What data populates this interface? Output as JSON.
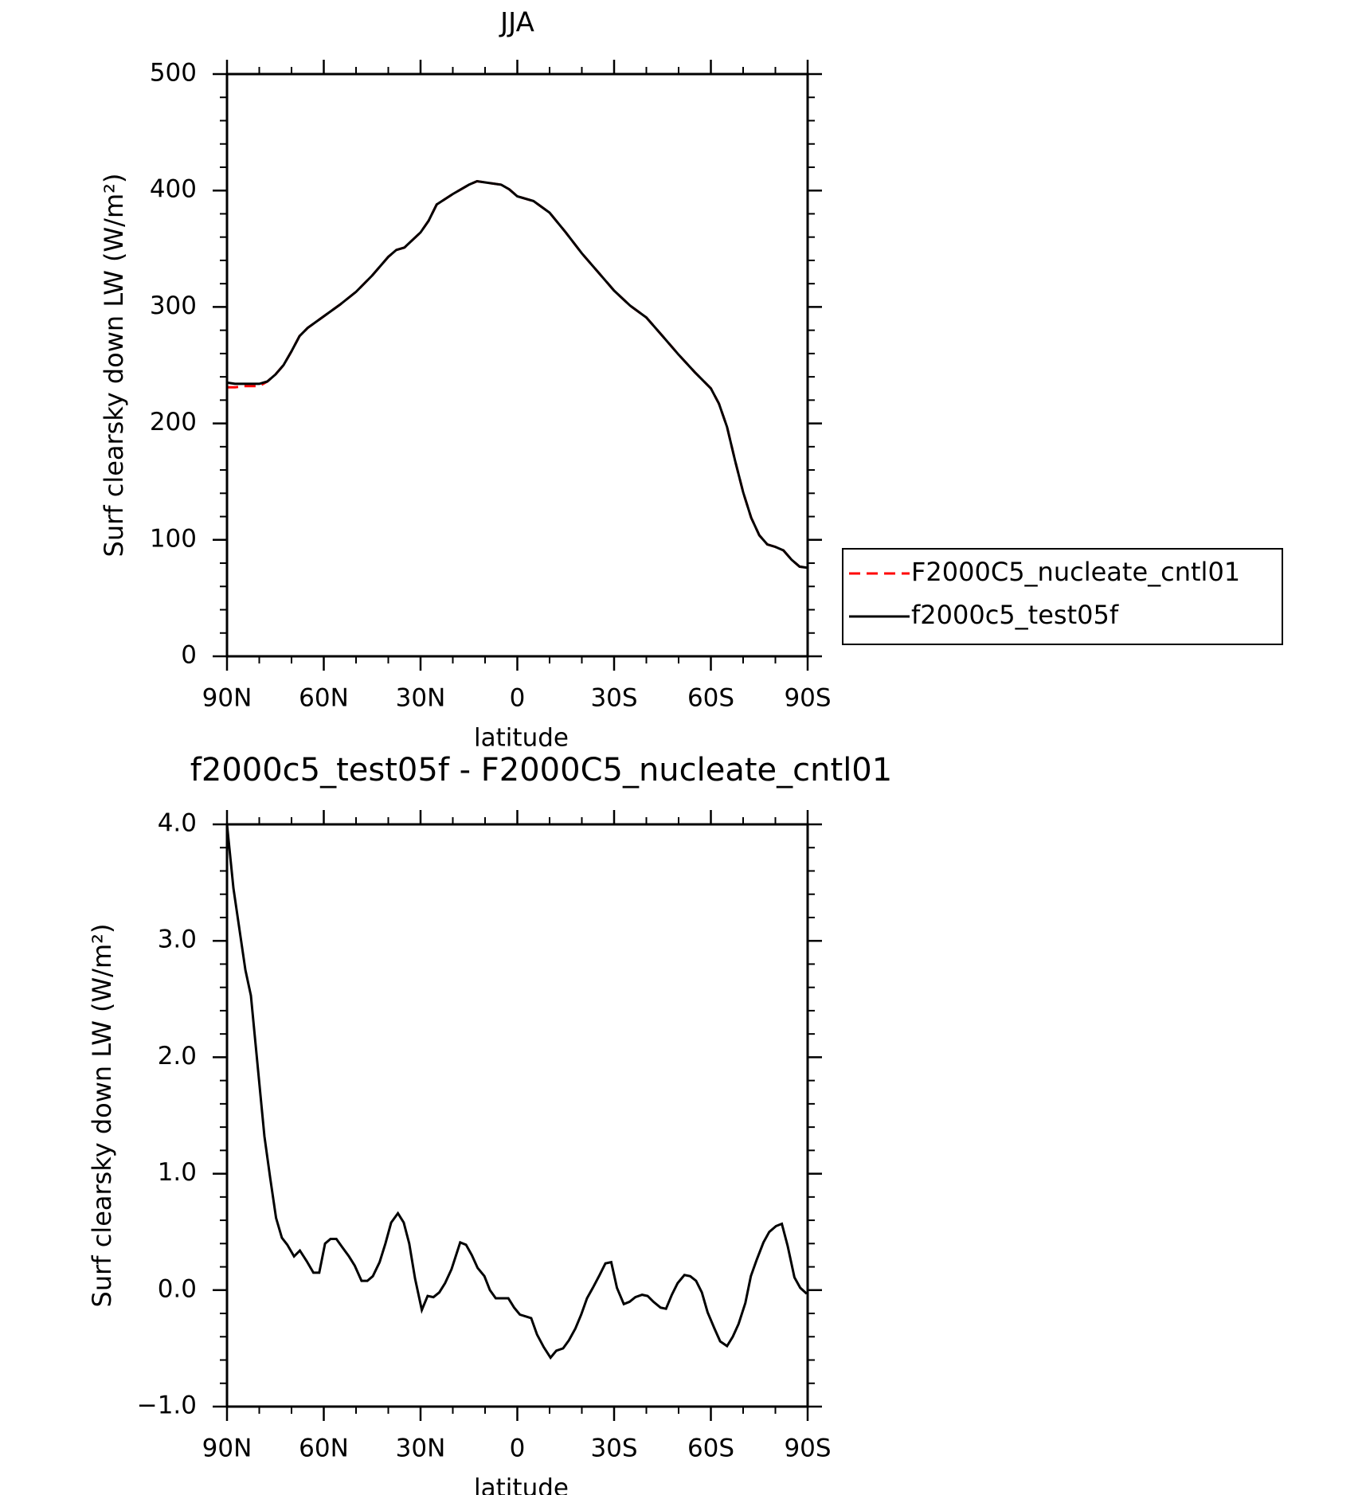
{
  "chart_data": [
    {
      "type": "line",
      "title": "JJA",
      "ylabel": "Surf clearsky down LW (W/m²)",
      "xlabel": "latitude",
      "x": [
        90,
        87.5,
        85,
        80,
        77.5,
        75,
        72.5,
        70,
        67.5,
        65,
        60,
        55,
        50,
        45,
        40,
        37.5,
        35,
        30,
        27.5,
        25,
        20,
        15,
        12.5,
        10,
        5,
        2.5,
        0,
        -5,
        -10,
        -15,
        -20,
        -25,
        -30,
        -35,
        -40,
        -45,
        -50,
        -55,
        -60,
        -62.5,
        -65,
        -67.5,
        -70,
        -72.5,
        -75,
        -77.5,
        -80,
        -82.5,
        -85,
        -87.5,
        -90
      ],
      "series": [
        {
          "name": "F2000C5_nucleate_cntl01",
          "color": "#ff0000",
          "dash": true,
          "values": [
            231,
            231,
            232,
            232,
            236,
            242,
            250,
            262,
            275,
            282,
            292,
            302,
            313,
            327,
            343,
            349,
            351,
            364,
            374,
            388,
            397,
            405,
            408,
            407,
            405,
            401,
            395,
            391,
            381,
            364,
            346,
            330,
            314,
            301,
            291,
            275,
            259,
            244,
            230,
            217,
            197,
            168,
            141,
            119,
            104,
            96,
            94,
            91,
            83,
            77,
            76
          ]
        },
        {
          "name": "f2000c5_test05f",
          "color": "#000000",
          "dash": false,
          "values": [
            235,
            234,
            234,
            234,
            236,
            242,
            250,
            262,
            275,
            282,
            292,
            302,
            313,
            327,
            343,
            349,
            351,
            364,
            374,
            388,
            397,
            405,
            408,
            407,
            405,
            401,
            395,
            391,
            381,
            364,
            346,
            330,
            314,
            301,
            291,
            275,
            259,
            244,
            230,
            217,
            197,
            168,
            141,
            119,
            104,
            96,
            94,
            91,
            83,
            77,
            76
          ]
        }
      ],
      "xlim": [
        90,
        -90
      ],
      "ylim": [
        0,
        500
      ],
      "xticks": [
        {
          "value": 90,
          "label": "90N"
        },
        {
          "value": 60,
          "label": "60N"
        },
        {
          "value": 30,
          "label": "30N"
        },
        0,
        {
          "value": -30,
          "label": "30S"
        },
        {
          "value": -60,
          "label": "60S"
        },
        {
          "value": -90,
          "label": "90S"
        }
      ],
      "yticks": [
        0,
        100,
        200,
        300,
        400,
        500
      ],
      "legend": "right"
    },
    {
      "type": "line",
      "title": "f2000c5_test05f - F2000C5_nucleate_cntl01",
      "ylabel": "Surf clearsky down LW (W/m²)",
      "xlabel": "latitude",
      "x": [
        90,
        88,
        84.3,
        82.6,
        78.4,
        76.6,
        74.8,
        73,
        71.3,
        69.2,
        67.4,
        65.3,
        63.2,
        61.4,
        59.6,
        57.9,
        56.1,
        54.3,
        52.2,
        50.4,
        48.3,
        46.5,
        44.8,
        42.7,
        40.9,
        39.1,
        37,
        35.2,
        33.5,
        31.7,
        29.6,
        27.8,
        26,
        24.2,
        22.4,
        20.4,
        17.7,
        15.9,
        14.1,
        12.3,
        10.2,
        8.5,
        6.7,
        2.8,
        1,
        -0.8,
        -4.3,
        -6.1,
        -8.2,
        -10.3,
        -12.1,
        -14.2,
        -16,
        -18,
        -19.8,
        -21.6,
        -23.4,
        -25.5,
        -27.3,
        -29.1,
        -30.9,
        -33,
        -34.8,
        -36.6,
        -38.7,
        -40.4,
        -42.2,
        -44.4,
        -46.1,
        -47.9,
        -49.7,
        -51.8,
        -53.6,
        -55.4,
        -57.2,
        -59,
        -61.1,
        -62.9,
        -65,
        -66.8,
        -68.6,
        -70.7,
        -72.4,
        -74.2,
        -76.3,
        -78.1,
        -80.2,
        -82,
        -83.8,
        -85.9,
        -87.7,
        -89.7
      ],
      "color": "#000000",
      "values": [
        4.0,
        3.45,
        2.75,
        2.53,
        1.32,
        0.96,
        0.62,
        0.45,
        0.39,
        0.29,
        0.34,
        0.25,
        0.15,
        0.15,
        0.4,
        0.44,
        0.44,
        0.37,
        0.29,
        0.21,
        0.08,
        0.08,
        0.12,
        0.24,
        0.4,
        0.58,
        0.66,
        0.58,
        0.4,
        0.1,
        -0.17,
        -0.05,
        -0.06,
        -0.02,
        0.06,
        0.18,
        0.41,
        0.39,
        0.3,
        0.19,
        0.12,
        0.0,
        -0.07,
        -0.07,
        -0.15,
        -0.21,
        -0.24,
        -0.38,
        -0.49,
        -0.58,
        -0.52,
        -0.5,
        -0.43,
        -0.33,
        -0.21,
        -0.07,
        0.02,
        0.13,
        0.23,
        0.24,
        0.02,
        -0.12,
        -0.1,
        -0.06,
        -0.04,
        -0.05,
        -0.1,
        -0.15,
        -0.16,
        -0.04,
        0.06,
        0.13,
        0.12,
        0.08,
        -0.02,
        -0.19,
        -0.33,
        -0.44,
        -0.48,
        -0.4,
        -0.29,
        -0.11,
        0.12,
        0.26,
        0.41,
        0.5,
        0.55,
        0.57,
        0.38,
        0.11,
        0.02,
        -0.03
      ],
      "xlim": [
        90,
        -90
      ],
      "ylim": [
        -1,
        4
      ],
      "xticks": [
        {
          "value": 90,
          "label": "90N"
        },
        {
          "value": 60,
          "label": "60N"
        },
        {
          "value": 30,
          "label": "30N"
        },
        0,
        {
          "value": -30,
          "label": "30S"
        },
        {
          "value": -60,
          "label": "60S"
        },
        {
          "value": -90,
          "label": "90S"
        }
      ],
      "yticks": [
        {
          "value": -1,
          "label": "−1.0"
        },
        {
          "value": 0,
          "label": "0.0"
        },
        {
          "value": 1,
          "label": "1.0"
        },
        {
          "value": 2,
          "label": "2.0"
        },
        {
          "value": 3,
          "label": "3.0"
        },
        {
          "value": 4,
          "label": "4.0"
        }
      ]
    }
  ]
}
